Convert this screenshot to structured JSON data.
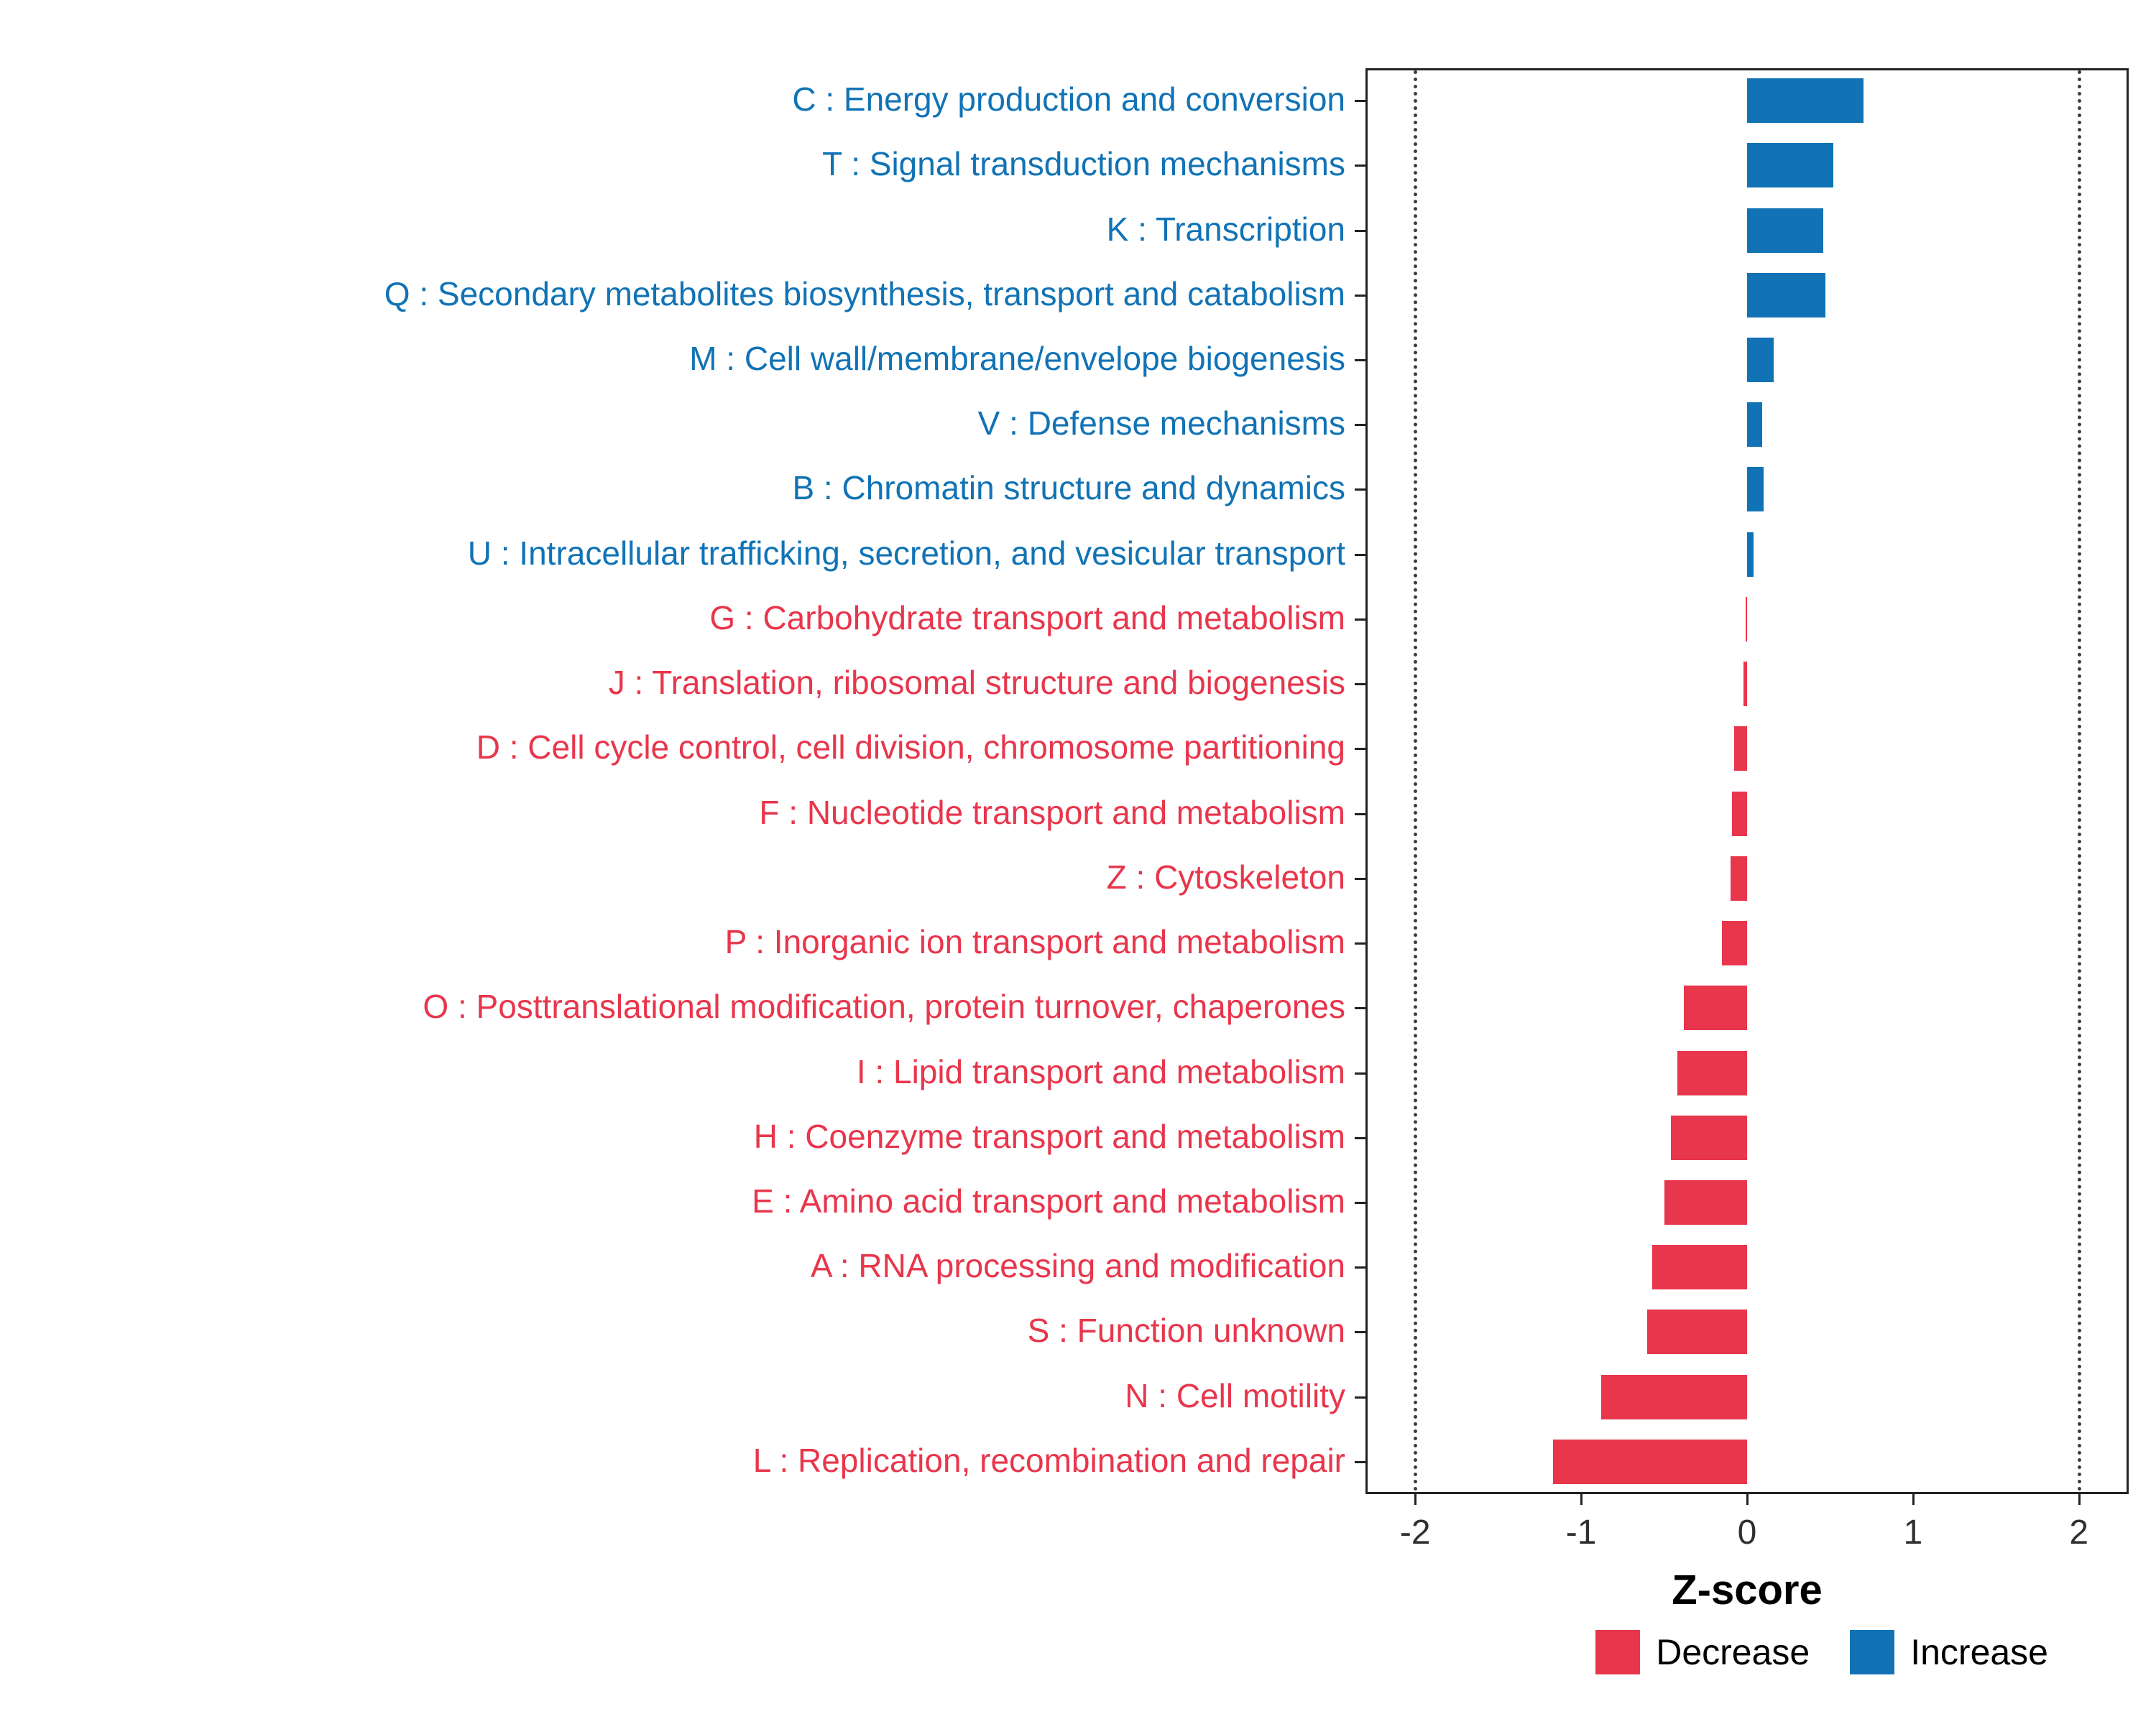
{
  "chart_data": {
    "type": "bar",
    "orientation": "horizontal",
    "title": "",
    "xlabel": "Z-score",
    "ylabel": "",
    "xlim": [
      -2.3,
      2.3
    ],
    "x_ticks": [
      -2,
      -1,
      0,
      1,
      2
    ],
    "reference_lines": [
      -2,
      2
    ],
    "grid": false,
    "legend_position": "bottom-right",
    "colors": {
      "increase": "#1173B5",
      "decrease": "#E8364C"
    },
    "legend": [
      {
        "label": "Decrease",
        "group": "decrease"
      },
      {
        "label": "Increase",
        "group": "increase"
      }
    ],
    "categories": [
      "C : Energy production and conversion",
      "T : Signal transduction mechanisms",
      "K : Transcription",
      "Q : Secondary metabolites biosynthesis, transport and catabolism",
      "M : Cell wall/membrane/envelope biogenesis",
      "V : Defense mechanisms",
      "B : Chromatin structure and dynamics",
      "U : Intracellular trafficking, secretion, and vesicular transport",
      "G : Carbohydrate transport and metabolism",
      "J : Translation, ribosomal structure and biogenesis",
      "D : Cell cycle control, cell division, chromosome partitioning",
      "F : Nucleotide transport and metabolism",
      "Z : Cytoskeleton",
      "P : Inorganic ion transport and metabolism",
      "O : Posttranslational modification, protein turnover, chaperones",
      "I : Lipid transport and metabolism",
      "H : Coenzyme transport and metabolism",
      "E : Amino acid transport and metabolism",
      "A : RNA processing and modification",
      "S : Function unknown",
      "N : Cell motility",
      "L : Replication, recombination and repair"
    ],
    "values": [
      0.7,
      0.52,
      0.46,
      0.47,
      0.16,
      0.09,
      0.1,
      0.04,
      -0.01,
      -0.02,
      -0.08,
      -0.09,
      -0.1,
      -0.15,
      -0.38,
      -0.42,
      -0.46,
      -0.5,
      -0.57,
      -0.6,
      -0.88,
      -1.17
    ],
    "groups": [
      "increase",
      "increase",
      "increase",
      "increase",
      "increase",
      "increase",
      "increase",
      "increase",
      "decrease",
      "decrease",
      "decrease",
      "decrease",
      "decrease",
      "decrease",
      "decrease",
      "decrease",
      "decrease",
      "decrease",
      "decrease",
      "decrease",
      "decrease",
      "decrease"
    ]
  }
}
